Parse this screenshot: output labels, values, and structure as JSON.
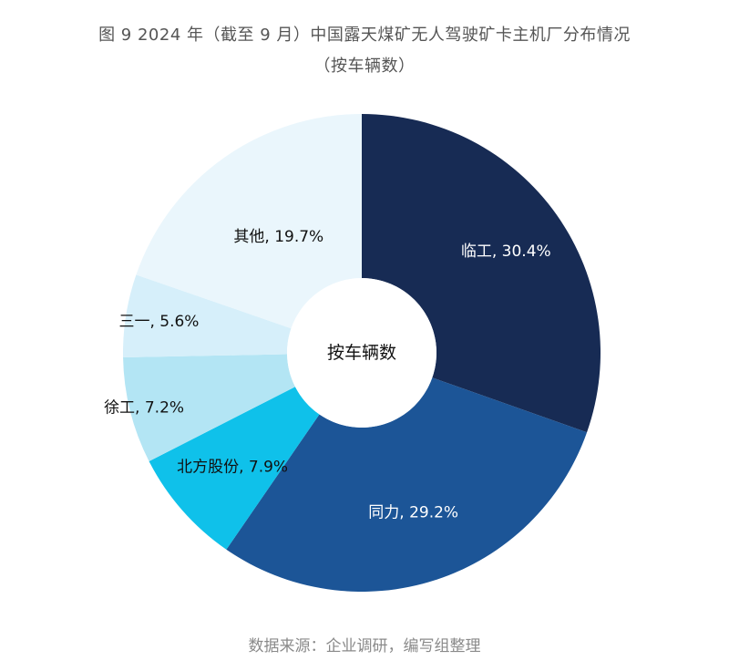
{
  "chart_data": {
    "type": "pie",
    "title": "图 9  2024 年（截至 9 月）中国露天煤矿无人驾驶矿卡主机厂分布情况",
    "subtitle": "（按车辆数）",
    "center_label": "按车辆数",
    "source": "数据来源：企业调研，编写组整理",
    "slices": [
      {
        "label": "临工, 30.4%",
        "value": 30.4,
        "color": "#172b54",
        "text_color": "#ffffff"
      },
      {
        "label": "同力, 29.2%",
        "value": 29.2,
        "color": "#1c5597",
        "text_color": "#ffffff"
      },
      {
        "label": "北方股份, 7.9%",
        "value": 7.9,
        "color": "#0fc1ea",
        "text_color": "#111111"
      },
      {
        "label": "徐工, 7.2%",
        "value": 7.2,
        "color": "#b3e5f4",
        "text_color": "#111111"
      },
      {
        "label": "三一, 5.6%",
        "value": 5.6,
        "color": "#d6effa",
        "text_color": "#111111"
      },
      {
        "label": "其他, 19.7%",
        "value": 19.7,
        "color": "#eaf6fc",
        "text_color": "#111111"
      }
    ],
    "legend": "none"
  }
}
